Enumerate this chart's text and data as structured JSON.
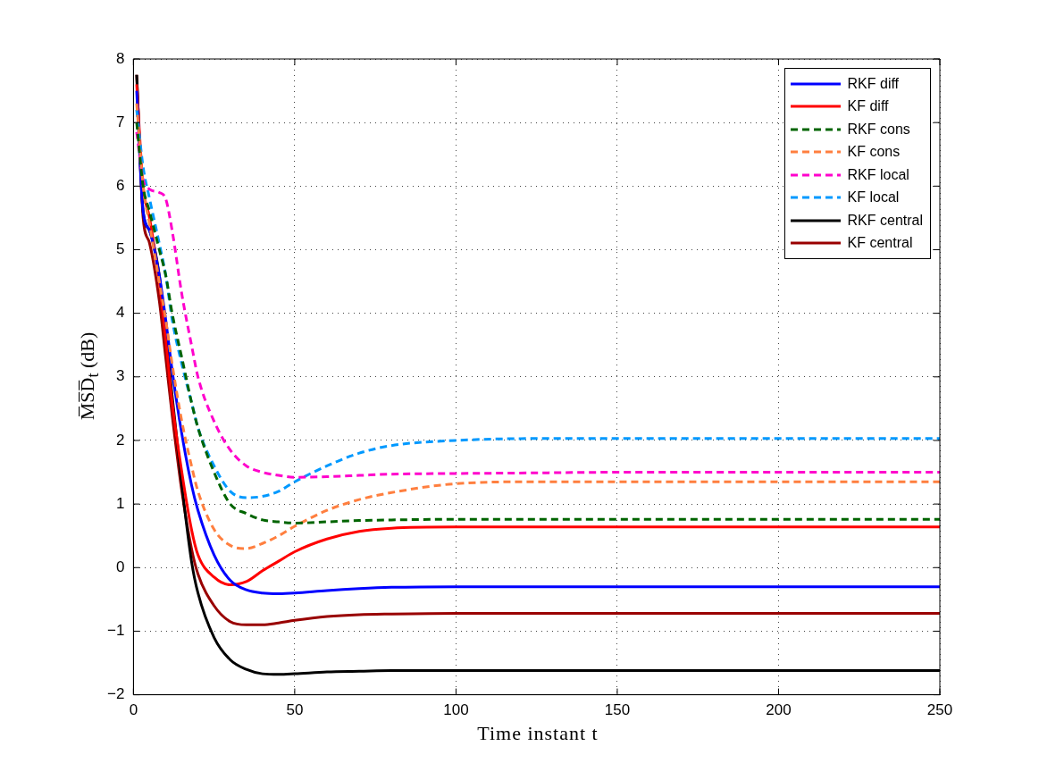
{
  "chart_data": {
    "type": "line",
    "xlabel": "Time instant t",
    "ylabel": "M̅S̅D̅$_{t}$ (dB)",
    "x": [
      1,
      3,
      5,
      8,
      10,
      12,
      15,
      18,
      20,
      25,
      30,
      35,
      40,
      45,
      50,
      60,
      70,
      80,
      100,
      125,
      150,
      200,
      250
    ],
    "xlim": [
      0,
      250
    ],
    "xticks": [
      0,
      50,
      100,
      150,
      200,
      250
    ],
    "ylim": [
      -2,
      8
    ],
    "yticks": [
      {
        "value": -2,
        "label": "−2"
      },
      {
        "value": -1,
        "label": "−1"
      },
      0,
      1,
      2,
      3,
      4,
      5,
      6,
      7,
      8
    ],
    "grid": true,
    "legend": "top right",
    "marker": "none",
    "series": [
      {
        "name": "RKF diff",
        "color": "#0000ff",
        "line_style": "solid",
        "values": [
          7.5,
          5.6,
          5.3,
          4.6,
          3.9,
          3.1,
          2.1,
          1.3,
          0.9,
          0.2,
          -0.2,
          -0.35,
          -0.4,
          -0.41,
          -0.4,
          -0.36,
          -0.33,
          -0.31,
          -0.3,
          -0.3,
          -0.3,
          -0.3,
          -0.3
        ]
      },
      {
        "name": "KF diff",
        "color": "#ff0000",
        "line_style": "solid",
        "values": [
          7.6,
          6.0,
          5.5,
          4.5,
          3.6,
          2.6,
          1.5,
          0.6,
          0.2,
          -0.15,
          -0.27,
          -0.22,
          -0.05,
          0.1,
          0.25,
          0.45,
          0.57,
          0.62,
          0.64,
          0.64,
          0.64,
          0.64,
          0.64
        ]
      },
      {
        "name": "RKF cons",
        "color": "#006400",
        "line_style": "dashed",
        "values": [
          7.0,
          6.0,
          5.6,
          5.0,
          4.6,
          4.0,
          3.3,
          2.6,
          2.2,
          1.5,
          1.0,
          0.85,
          0.75,
          0.72,
          0.7,
          0.72,
          0.74,
          0.75,
          0.76,
          0.76,
          0.76,
          0.76,
          0.76
        ]
      },
      {
        "name": "KF cons",
        "color": "#ff7f3f",
        "line_style": "dashed",
        "values": [
          7.3,
          6.0,
          5.4,
          4.5,
          3.9,
          3.2,
          2.3,
          1.6,
          1.2,
          0.6,
          0.35,
          0.3,
          0.38,
          0.5,
          0.65,
          0.9,
          1.07,
          1.18,
          1.32,
          1.35,
          1.35,
          1.35,
          1.35
        ]
      },
      {
        "name": "RKF local",
        "color": "#ff00cc",
        "line_style": "dashed",
        "values": [
          6.85,
          6.1,
          5.95,
          5.9,
          5.8,
          5.3,
          4.3,
          3.5,
          3.0,
          2.3,
          1.85,
          1.6,
          1.5,
          1.45,
          1.42,
          1.43,
          1.45,
          1.47,
          1.48,
          1.49,
          1.5,
          1.5,
          1.5
        ]
      },
      {
        "name": "KF local",
        "color": "#0099ff",
        "line_style": "dashed",
        "values": [
          7.2,
          6.3,
          5.8,
          5.1,
          4.6,
          3.9,
          3.2,
          2.6,
          2.2,
          1.6,
          1.2,
          1.1,
          1.12,
          1.2,
          1.35,
          1.6,
          1.8,
          1.92,
          2.0,
          2.03,
          2.03,
          2.03,
          2.03
        ]
      },
      {
        "name": "RKF central",
        "color": "#000000",
        "line_style": "solid",
        "values": [
          7.75,
          5.6,
          5.3,
          4.6,
          3.7,
          2.7,
          1.3,
          0.1,
          -0.4,
          -1.1,
          -1.45,
          -1.6,
          -1.67,
          -1.68,
          -1.67,
          -1.64,
          -1.63,
          -1.62,
          -1.62,
          -1.62,
          -1.62,
          -1.62,
          -1.62
        ]
      },
      {
        "name": "KF central",
        "color": "#990000",
        "line_style": "solid",
        "values": [
          7.75,
          5.5,
          5.1,
          4.2,
          3.3,
          2.4,
          1.2,
          0.3,
          -0.1,
          -0.6,
          -0.85,
          -0.9,
          -0.9,
          -0.87,
          -0.83,
          -0.77,
          -0.74,
          -0.73,
          -0.72,
          -0.72,
          -0.72,
          -0.72,
          -0.72
        ]
      }
    ]
  }
}
